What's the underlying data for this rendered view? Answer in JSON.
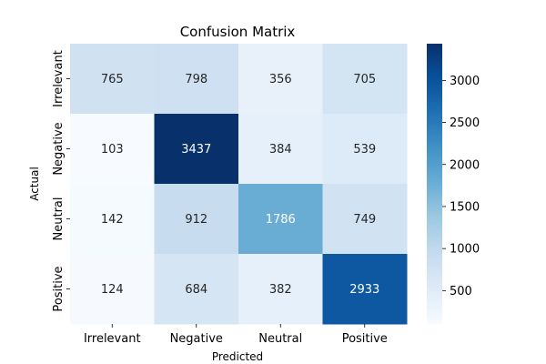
{
  "chart_data": {
    "type": "heatmap",
    "title": "Confusion Matrix",
    "xlabel": "Predicted",
    "ylabel": "Actual",
    "x_categories": [
      "Irrelevant",
      "Negative",
      "Neutral",
      "Positive"
    ],
    "y_categories": [
      "Irrelevant",
      "Negative",
      "Neutral",
      "Positive"
    ],
    "values": [
      [
        765,
        798,
        356,
        705
      ],
      [
        103,
        3437,
        384,
        539
      ],
      [
        142,
        912,
        1786,
        749
      ],
      [
        124,
        684,
        382,
        2933
      ]
    ],
    "colormap": "Blues",
    "colorbar": {
      "range": [
        103,
        3437
      ],
      "ticks": [
        500,
        1000,
        1500,
        2000,
        2500,
        3000
      ],
      "tick_labels": [
        "500",
        "1000",
        "1500",
        "2000",
        "2500",
        "3000"
      ]
    },
    "annotations": true
  }
}
